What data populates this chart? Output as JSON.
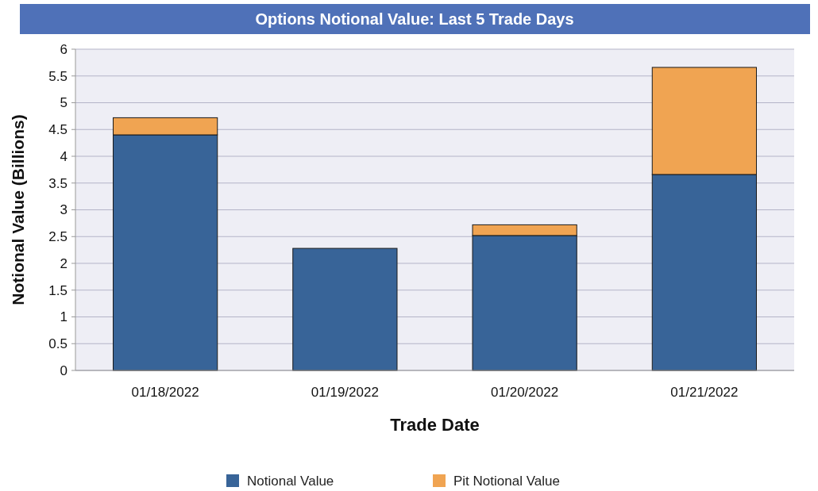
{
  "chart_data": {
    "type": "bar",
    "title": "Options Notional Value: Last 5 Trade Days",
    "xlabel": "Trade Date",
    "ylabel": "Notional Value (Billions)",
    "categories": [
      "01/18/2022",
      "01/19/2022",
      "01/20/2022",
      "01/21/2022"
    ],
    "series": [
      {
        "name": "Notional Value",
        "color": "#386498",
        "values": [
          4.4,
          2.28,
          2.52,
          3.66
        ]
      },
      {
        "name": "Pit Notional Value",
        "color": "#f0a452",
        "values": [
          0.32,
          0,
          0.2,
          2.0
        ]
      }
    ],
    "stacked": true,
    "ylim": [
      0,
      6
    ],
    "yticks": [
      0,
      0.5,
      1,
      1.5,
      2,
      2.5,
      3,
      3.5,
      4,
      4.5,
      5,
      5.5,
      6
    ],
    "grid": "y",
    "legend": "bottom"
  }
}
